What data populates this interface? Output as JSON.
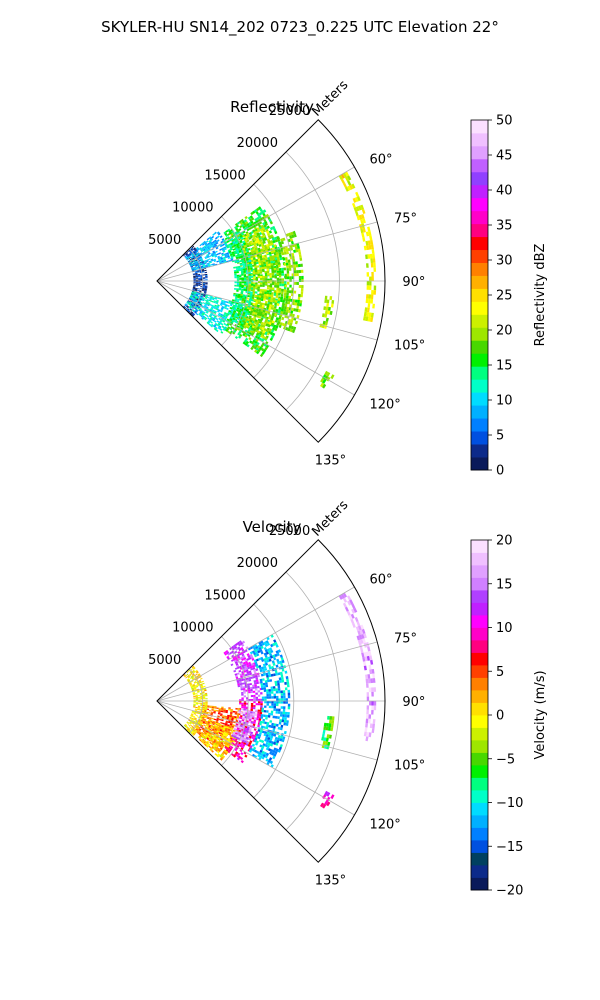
{
  "figure": {
    "suptitle": "SKYLER-HU  SN14_202  0723_0.225 UTC Elevation 22°"
  },
  "chart_data": [
    {
      "type": "radar_ppi_sector",
      "title": "Reflectivity",
      "radial_axis_label": "Meters",
      "radial_ticks": [
        5000,
        10000,
        15000,
        20000,
        25000
      ],
      "radial_tick_labels": [
        "5000",
        "10000",
        "15000",
        "20000",
        "25000"
      ],
      "rlim": [
        0,
        25000
      ],
      "azimuth_range_deg": [
        45,
        135
      ],
      "azimuth_ticks": [
        60,
        75,
        90,
        105,
        120,
        135
      ],
      "azimuth_tick_labels": [
        "60°",
        "75°",
        "90°",
        "105°",
        "120°",
        "135°"
      ],
      "grid": true,
      "colorbar": {
        "label": "Reflectivity dBZ",
        "range": [
          0,
          50
        ],
        "ticks": [
          0,
          5,
          10,
          15,
          20,
          25,
          30,
          35,
          40,
          45,
          50
        ],
        "tick_labels": [
          "0",
          "5",
          "10",
          "15",
          "20",
          "25",
          "30",
          "35",
          "40",
          "45",
          "50"
        ],
        "colors": [
          "#0a1a5a",
          "#0c2a8a",
          "#0050e0",
          "#0080ff",
          "#00b0ff",
          "#00dcff",
          "#00ffc8",
          "#00ff80",
          "#00f000",
          "#48d800",
          "#9ee600",
          "#ccf000",
          "#ffff00",
          "#ffe000",
          "#ffb000",
          "#ff8000",
          "#ff4000",
          "#ff0000",
          "#ff0080",
          "#ff00c8",
          "#ff00ff",
          "#c020ff",
          "#9040ff",
          "#c060ff",
          "#e0a0ff",
          "#f0c0ff",
          "#fce0ff"
        ]
      },
      "echo_regions": [
        {
          "az": [
            54,
            126
          ],
          "range": [
            9000,
            14000
          ],
          "value": 16
        },
        {
          "az": [
            62,
            118
          ],
          "range": [
            10000,
            13500
          ],
          "value": 20
        },
        {
          "az": [
            46,
            134
          ],
          "range": [
            4000,
            5500
          ],
          "value": 3
        },
        {
          "az": [
            50,
            75
          ],
          "range": [
            4000,
            8500
          ],
          "value": 9
        },
        {
          "az": [
            105,
            130
          ],
          "range": [
            4000,
            9000
          ],
          "value": 11
        },
        {
          "az": [
            58,
            120
          ],
          "range": [
            8500,
            10500
          ],
          "value": 14
        },
        {
          "az": [
            70,
            110
          ],
          "range": [
            14000,
            16000
          ],
          "value": 19
        },
        {
          "az": [
            60,
            100
          ],
          "range": [
            23000,
            24000
          ],
          "value": 23
        },
        {
          "az": [
            95,
            105
          ],
          "range": [
            18500,
            19500
          ],
          "value": 20
        },
        {
          "az": [
            118,
            122
          ],
          "range": [
            21000,
            22000
          ],
          "value": 18
        }
      ]
    },
    {
      "type": "radar_ppi_sector",
      "title": "Velocity",
      "radial_axis_label": "Meters",
      "radial_ticks": [
        5000,
        10000,
        15000,
        20000,
        25000
      ],
      "radial_tick_labels": [
        "5000",
        "10000",
        "15000",
        "20000",
        "25000"
      ],
      "rlim": [
        0,
        25000
      ],
      "azimuth_range_deg": [
        45,
        135
      ],
      "azimuth_ticks": [
        60,
        75,
        90,
        105,
        120,
        135
      ],
      "azimuth_tick_labels": [
        "60°",
        "75°",
        "90°",
        "105°",
        "120°",
        "135°"
      ],
      "grid": true,
      "colorbar": {
        "label": "Velocity (m/s)",
        "range": [
          -20,
          20
        ],
        "ticks": [
          -20,
          -15,
          -10,
          -5,
          0,
          5,
          10,
          15,
          20
        ],
        "tick_labels": [
          "−20",
          "−15",
          "−10",
          "−5",
          "0",
          "5",
          "10",
          "15",
          "20"
        ],
        "colors": [
          "#0a1a5a",
          "#0c2a8a",
          "#004060",
          "#0050e0",
          "#0080ff",
          "#00b0ff",
          "#00dcff",
          "#00ffc8",
          "#00ff80",
          "#00f000",
          "#48d800",
          "#9ee600",
          "#ccf000",
          "#ffff00",
          "#ffe000",
          "#ffb000",
          "#ff8000",
          "#ff4000",
          "#ff0000",
          "#ff0080",
          "#ff00c8",
          "#ff00ff",
          "#c020ff",
          "#b040ff",
          "#d080ff",
          "#e0a0ff",
          "#f0c0ff",
          "#fce0ff"
        ]
      },
      "echo_regions": [
        {
          "az": [
            54,
            90
          ],
          "range": [
            9000,
            11500
          ],
          "value": 13
        },
        {
          "az": [
            90,
            126
          ],
          "range": [
            9000,
            11500
          ],
          "value": 9
        },
        {
          "az": [
            60,
            120
          ],
          "range": [
            11500,
            14500
          ],
          "value": -12
        },
        {
          "az": [
            95,
            128
          ],
          "range": [
            5000,
            9000
          ],
          "value": 4
        },
        {
          "az": [
            110,
            132
          ],
          "range": [
            6000,
            9500
          ],
          "value": 1
        },
        {
          "az": [
            46,
            134
          ],
          "range": [
            4000,
            5500
          ],
          "value": 0
        },
        {
          "az": [
            95,
            115
          ],
          "range": [
            9000,
            11000
          ],
          "value": 16
        },
        {
          "az": [
            60,
            100
          ],
          "range": [
            23000,
            24000
          ],
          "value": 17
        },
        {
          "az": [
            95,
            105
          ],
          "range": [
            18500,
            19500
          ],
          "value": -6
        },
        {
          "az": [
            118,
            122
          ],
          "range": [
            21000,
            22000
          ],
          "value": 10
        }
      ]
    }
  ]
}
